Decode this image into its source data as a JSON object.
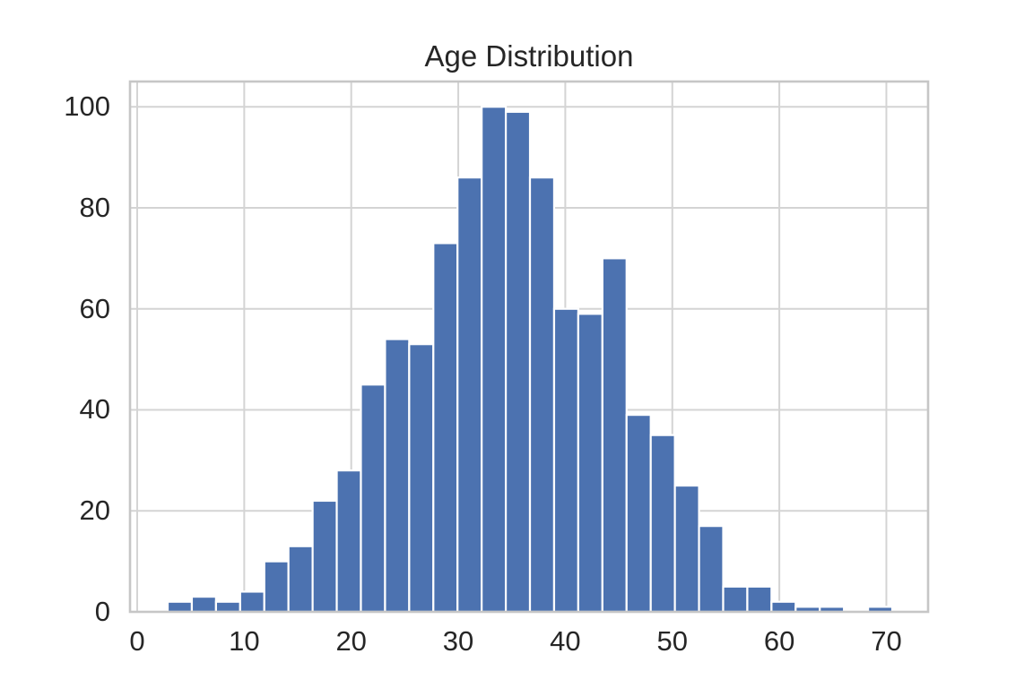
{
  "chart_data": {
    "type": "bar",
    "subtype": "histogram",
    "title": "Age Distribution",
    "xlabel": "",
    "ylabel": "",
    "bin_start": 2.85,
    "bin_width": 2.2567,
    "counts": [
      2,
      3,
      2,
      4,
      10,
      13,
      22,
      28,
      45,
      54,
      53,
      73,
      86,
      100,
      99,
      86,
      60,
      59,
      70,
      39,
      35,
      25,
      17,
      5,
      5,
      2,
      1,
      1,
      0,
      1
    ],
    "total_samples": 1000,
    "x_ticks": [
      0,
      10,
      20,
      30,
      40,
      50,
      60,
      70
    ],
    "y_ticks": [
      0,
      20,
      40,
      60,
      80,
      100
    ],
    "xlim": [
      -0.67,
      73.9
    ],
    "ylim": [
      0,
      105
    ],
    "grid": true,
    "legend": "none",
    "bar_color": "#4C72B0",
    "bar_edge_color": "#ffffff",
    "grid_color": "#d4d4d4",
    "spine_color": "#c6c6c6",
    "text_color": "#262626",
    "background_color": "#ffffff"
  }
}
